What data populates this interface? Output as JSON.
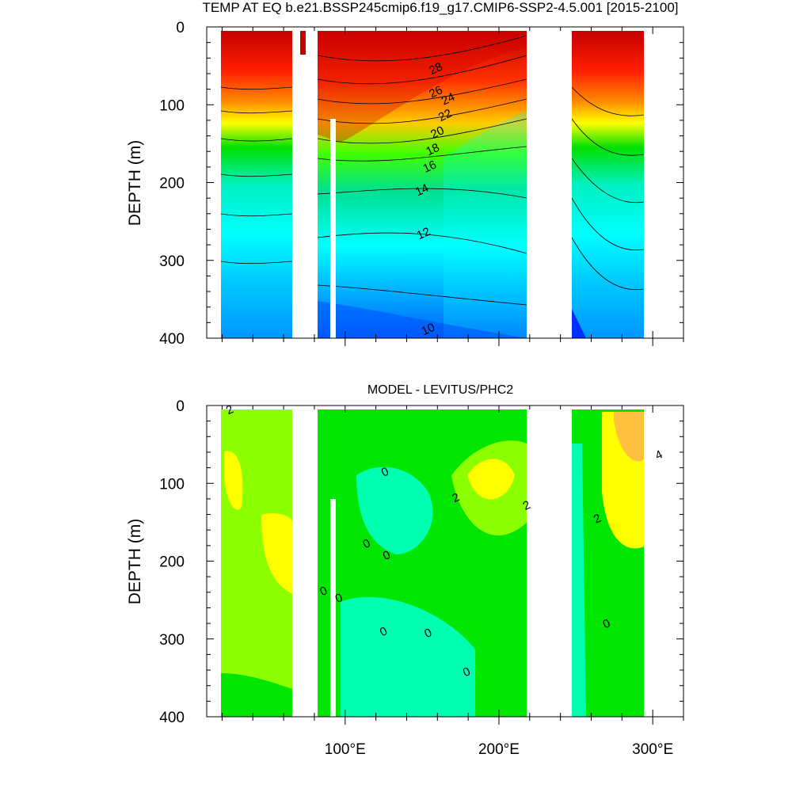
{
  "figure_title": "TEMP AT EQ b.e21.BSSP245cmip6.f19_g17.CMIP6-SSP2-4.5.001 [2015-2100]",
  "chart_data": [
    {
      "type": "heatmap",
      "title": "TEMP AT EQ b.e21.BSSP245cmip6.f19_g17.CMIP6-SSP2-4.5.001 [2015-2100]",
      "xlabel": "",
      "ylabel": "DEPTH (m)",
      "xlim": [
        10,
        320
      ],
      "ylim": [
        400,
        0
      ],
      "x_ticks": [
        100,
        200,
        300
      ],
      "x_tick_labels": [
        "",
        "",
        ""
      ],
      "y_ticks": [
        0,
        100,
        200,
        300,
        400
      ],
      "y_tick_labels": [
        "0",
        "100",
        "200",
        "300",
        "400"
      ],
      "land_gaps_lon": [
        [
          59,
          75
        ],
        [
          88,
          91
        ],
        [
          220,
          250
        ],
        [
          300,
          320
        ]
      ],
      "contour_labels": [
        {
          "text": "28",
          "lon": 160,
          "depth": 58
        },
        {
          "text": "26",
          "lon": 160,
          "depth": 88
        },
        {
          "text": "24",
          "lon": 168,
          "depth": 97
        },
        {
          "text": "22",
          "lon": 166,
          "depth": 118
        },
        {
          "text": "20",
          "lon": 161,
          "depth": 140
        },
        {
          "text": "18",
          "lon": 158,
          "depth": 162
        },
        {
          "text": "16",
          "lon": 156,
          "depth": 184
        },
        {
          "text": "14",
          "lon": 151,
          "depth": 214
        },
        {
          "text": "12",
          "lon": 152,
          "depth": 270
        },
        {
          "text": "10",
          "lon": 155,
          "depth": 393
        }
      ],
      "colors": {
        "warm": "#c40000",
        "mid": "#ffff00",
        "cool": "#00e6ff",
        "cold": "#0040ff"
      }
    },
    {
      "type": "heatmap",
      "title": "MODEL - LEVITUS/PHC2",
      "xlabel": "",
      "ylabel": "DEPTH (m)",
      "xlim": [
        10,
        320
      ],
      "ylim": [
        400,
        0
      ],
      "x_ticks": [
        100,
        200,
        300
      ],
      "x_tick_labels": [
        "100°E",
        "200°E",
        "300°E"
      ],
      "y_ticks": [
        0,
        100,
        200,
        300,
        400
      ],
      "y_tick_labels": [
        "0",
        "100",
        "200",
        "300",
        "400"
      ],
      "land_gaps_lon": [
        [
          59,
          75
        ],
        [
          88,
          91
        ],
        [
          220,
          250
        ],
        [
          300,
          320
        ]
      ],
      "contour_labels": [
        {
          "text": "2",
          "lon": 26,
          "depth": 10
        },
        {
          "text": "0",
          "lon": 127,
          "depth": 90
        },
        {
          "text": "2",
          "lon": 173,
          "depth": 123
        },
        {
          "text": "2",
          "lon": 219,
          "depth": 133
        },
        {
          "text": "2",
          "lon": 265,
          "depth": 150
        },
        {
          "text": "0",
          "lon": 115,
          "depth": 182
        },
        {
          "text": "0",
          "lon": 128,
          "depth": 197
        },
        {
          "text": "0",
          "lon": 87,
          "depth": 243
        },
        {
          "text": "0",
          "lon": 97,
          "depth": 252
        },
        {
          "text": "0",
          "lon": 126,
          "depth": 295
        },
        {
          "text": "0",
          "lon": 155,
          "depth": 297
        },
        {
          "text": "0",
          "lon": 271,
          "depth": 285
        },
        {
          "text": "0",
          "lon": 180,
          "depth": 347
        },
        {
          "text": "4",
          "lon": 305,
          "depth": 68
        }
      ],
      "colors": {
        "zero_band": "#00ffb0",
        "green": "#00e600",
        "lightgreen": "#8cff00",
        "yellow": "#ffff00",
        "orange": "#ffc040"
      }
    }
  ]
}
